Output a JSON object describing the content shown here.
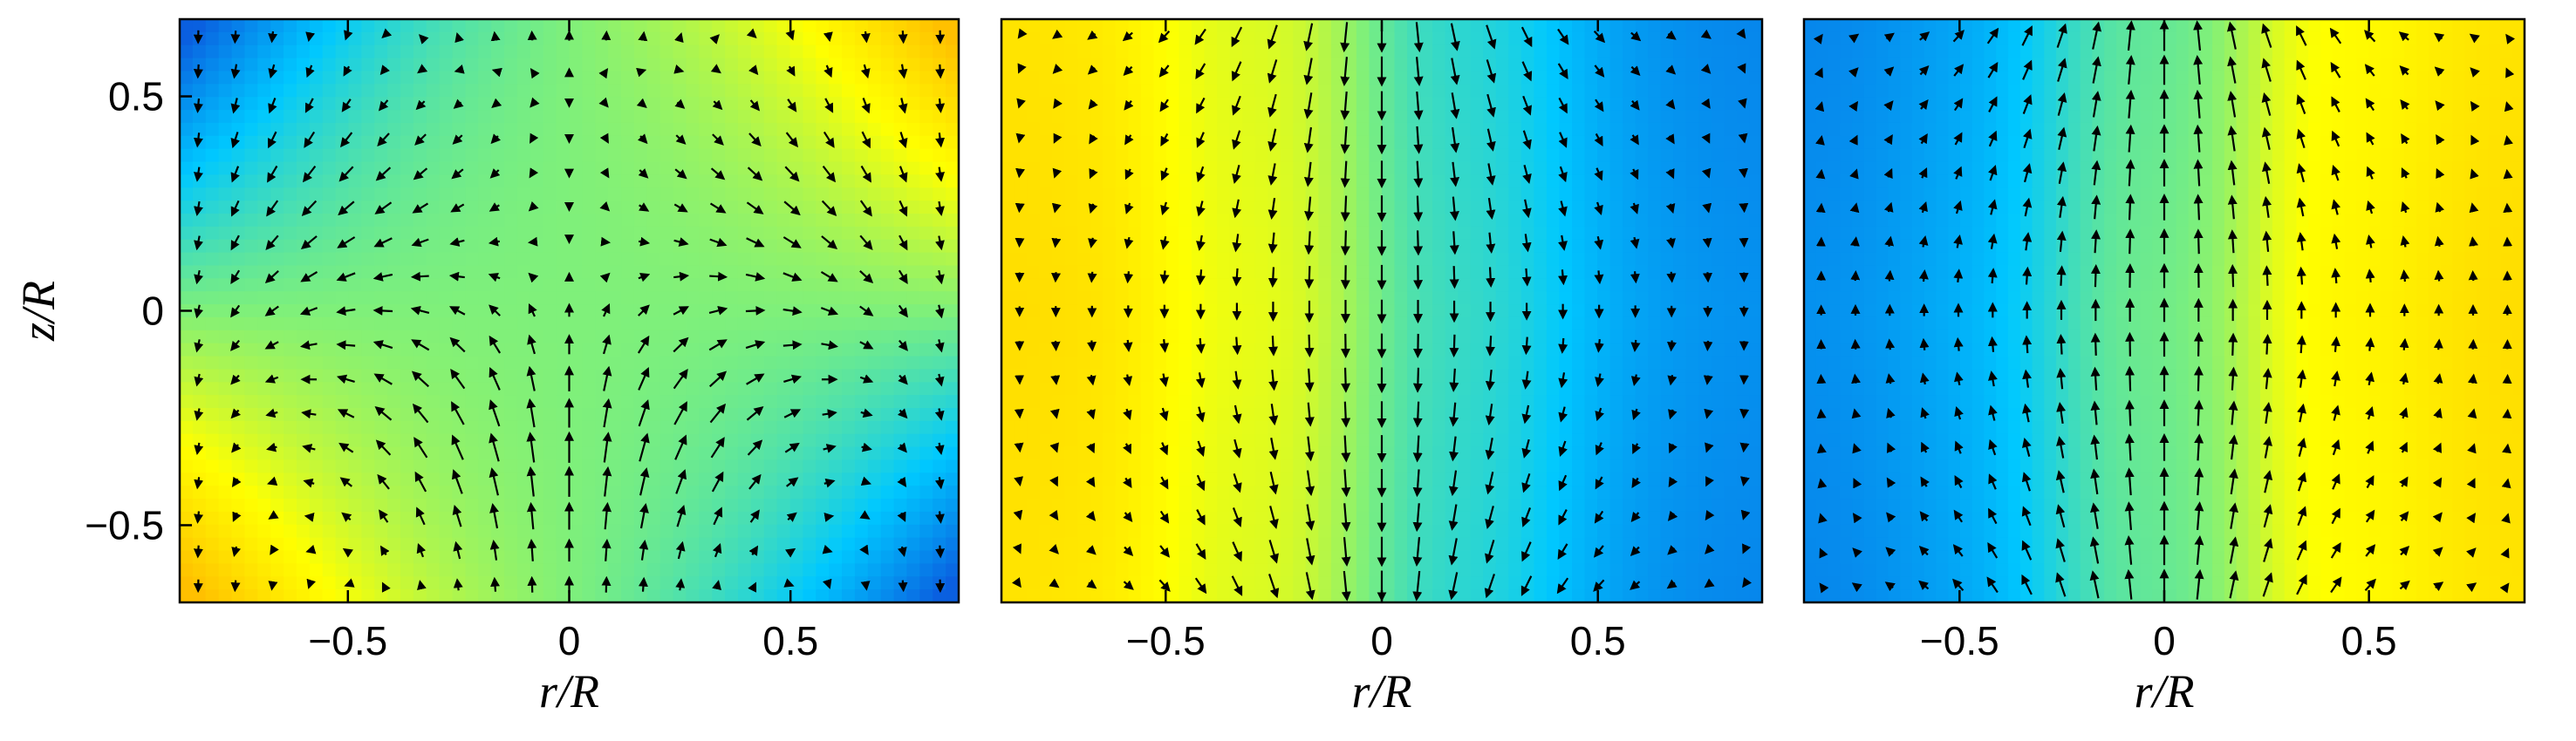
{
  "chart_data": [
    {
      "type": "heatmap",
      "field_pattern": "lower-left-high",
      "xlabel": "r/R",
      "ylabel": "z/R",
      "xlim": [
        -0.88,
        0.88
      ],
      "ylim": [
        -0.68,
        0.68
      ],
      "xticks": [
        -0.5,
        0,
        0.5
      ],
      "xtick_labels": [
        "−0.5",
        "0",
        "0.5"
      ],
      "yticks": [
        -0.5,
        0,
        0.5
      ],
      "ytick_labels": [
        "−0.5",
        "0",
        "0.5"
      ],
      "colormap": [
        "#0a5fe0",
        "#00c8ff",
        "#7ff07a",
        "#ffff00",
        "#ffc000"
      ],
      "vector_field": "quiver (flow arrows overlaid)"
    },
    {
      "type": "heatmap",
      "field_pattern": "left-high-columns",
      "xlabel": "r/R",
      "ylabel": "",
      "xlim": [
        -0.88,
        0.88
      ],
      "ylim": [
        -0.68,
        0.68
      ],
      "xticks": [
        -0.5,
        0,
        0.5
      ],
      "xtick_labels": [
        "−0.5",
        "0",
        "0.5"
      ],
      "yticks": [],
      "ytick_labels": [],
      "colormap": [
        "#0a5fe0",
        "#00c8ff",
        "#7ff07a",
        "#ffff00",
        "#ffc000"
      ],
      "vector_field": "quiver (flow arrows overlaid)"
    },
    {
      "type": "heatmap",
      "field_pattern": "right-high-columns",
      "xlabel": "r/R",
      "ylabel": "",
      "xlim": [
        -0.88,
        0.88
      ],
      "ylim": [
        -0.68,
        0.68
      ],
      "xticks": [
        -0.5,
        0,
        0.5
      ],
      "xtick_labels": [
        "−0.5",
        "0",
        "0.5"
      ],
      "yticks": [],
      "ytick_labels": [],
      "colormap": [
        "#0a5fe0",
        "#00c8ff",
        "#7ff07a",
        "#ffff00",
        "#ffc000"
      ],
      "vector_field": "quiver (flow arrows overlaid)"
    }
  ]
}
